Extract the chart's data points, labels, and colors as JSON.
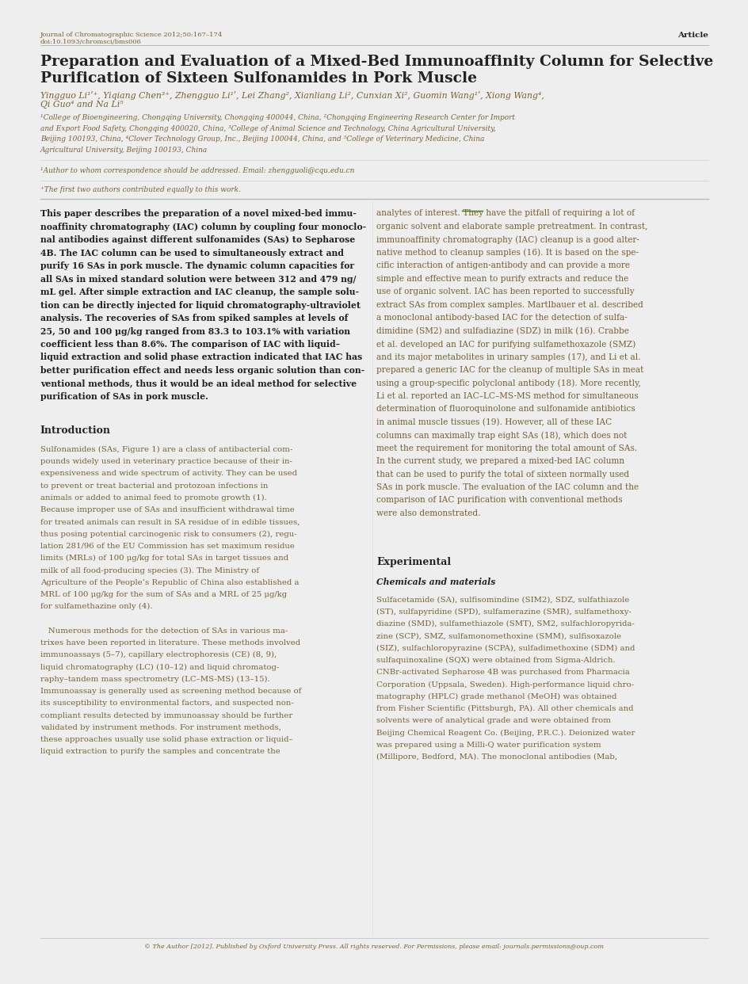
{
  "bg_color": "#eeeeee",
  "page_bg": "#ffffff",
  "header_journal": "Journal of Chromatographic Science 2012;50:167–174",
  "header_doi": "doi:10.1093/chromsci/bms006",
  "header_article": "Article",
  "title_line1": "Preparation and Evaluation of a Mixed-Bed Immunoaffinity Column for Selective",
  "title_line2": "Purification of Sixteen Sulfonamides in Pork Muscle",
  "authors_line1": "Yingguo Li¹ʹ⁺, Yiqiang Chen³⁺, Zhengguo Li¹ʹ, Lei Zhang², Xianliang Li², Cunxian Xi², Guomin Wang¹ʹ, Xiong Wang⁴,",
  "authors_line2": "Qi Guo⁴ and Na Li⁵",
  "aff1": "¹College of Bioengineering, Chongqing University, Chongqing 400044, China, ²Chongqing Engineering Research Center for Import",
  "aff2": "and Export Food Safety, Chongqing 400020, China, ³College of Animal Science and Technology, China Agricultural University,",
  "aff3": "Beijing 100193, China, ⁴Clover Technology Group, Inc., Beijing 100044, China, and ⁵College of Veterinary Medicine, China",
  "aff4": "Agricultural University, Beijing 100193, China",
  "corr": "¹Author to whom correspondence should be addressed. Email: zhengguoli@cqu.edu.cn",
  "equal": "⁺The first two authors contributed equally to this work.",
  "abs_left": [
    "This paper describes the preparation of a novel mixed-bed immu-",
    "noaffinity chromatography (IAC) column by coupling four monoclo-",
    "nal antibodies against different sulfonamides (SAs) to Sepharose",
    "4B. The IAC column can be used to simultaneously extract and",
    "purify 16 SAs in pork muscle. The dynamic column capacities for",
    "all SAs in mixed standard solution were between 312 and 479 ng/",
    "mL gel. After simple extraction and IAC cleanup, the sample solu-",
    "tion can be directly injected for liquid chromatography-ultraviolet",
    "analysis. The recoveries of SAs from spiked samples at levels of",
    "25, 50 and 100 μg/kg ranged from 83.3 to 103.1% with variation",
    "coefficient less than 8.6%. The comparison of IAC with liquid–",
    "liquid extraction and solid phase extraction indicated that IAC has",
    "better purification effect and needs less organic solution than con-",
    "ventional methods, thus it would be an ideal method for selective",
    "purification of SAs in pork muscle."
  ],
  "abs_right": [
    "analytes of interest. They have the pitfall of requiring a lot of",
    "organic solvent and elaborate sample pretreatment. In contrast,",
    "immunoaffinity chromatography (IAC) cleanup is a good alter-",
    "native method to cleanup samples (16). It is based on the spe-",
    "cific interaction of antigen-antibody and can provide a more",
    "simple and effective mean to purify extracts and reduce the",
    "use of organic solvent. IAC has been reported to successfully",
    "extract SAs from complex samples. Martlbauer et al. described",
    "a monoclonal antibody-based IAC for the detection of sulfa-",
    "dimidine (SM2) and sulfadiazine (SDZ) in milk (16). Crabbe",
    "et al. developed an IAC for purifying sulfamethoxazole (SMZ)",
    "and its major metabolites in urinary samples (17), and Li et al.",
    "prepared a generic IAC for the cleanup of multiple SAs in meat",
    "using a group-specific polyclonal antibody (18). More recently,",
    "Li et al. reported an IAC–LC–MS-MS method for simultaneous",
    "determination of fluoroquinolone and sulfonamide antibiotics",
    "in animal muscle tissues (19). However, all of these IAC",
    "columns can maximally trap eight SAs (18), which does not",
    "meet the requirement for monitoring the total amount of SAs.",
    "In the current study, we prepared a mixed-bed IAC column",
    "that can be used to purify the total of sixteen normally used",
    "SAs in pork muscle. The evaluation of the IAC column and the",
    "comparison of IAC purification with conventional methods",
    "were also demonstrated."
  ],
  "intro_heading": "Introduction",
  "intro_left": [
    "Sulfonamides (SAs, Figure 1) are a class of antibacterial com-",
    "pounds widely used in veterinary practice because of their in-",
    "expensiveness and wide spectrum of activity. They can be used",
    "to prevent or treat bacterial and protozoan infections in",
    "animals or added to animal feed to promote growth (1).",
    "Because improper use of SAs and insufficient withdrawal time",
    "for treated animals can result in SA residue of in edible tissues,",
    "thus posing potential carcinogenic risk to consumers (2), regu-",
    "lation 281/96 of the EU Commission has set maximum residue",
    "limits (MRLs) of 100 μg/kg for total SAs in target tissues and",
    "milk of all food-producing species (3). The Ministry of",
    "Agriculture of the People’s Republic of China also established a",
    "MRL of 100 μg/kg for the sum of SAs and a MRL of 25 μg/kg",
    "for sulfamethazine only (4).",
    "",
    "   Numerous methods for the detection of SAs in various ma-",
    "trixes have been reported in literature. These methods involved",
    "immunoassays (5–7), capillary electrophoresis (CE) (8, 9),",
    "liquid chromatography (LC) (10–12) and liquid chromatog-",
    "raphy–tandem mass spectrometry (LC–MS-MS) (13–15).",
    "Immunoassay is generally used as screening method because of",
    "its susceptibility to environmental factors, and suspected non-",
    "compliant results detected by immunoassay should be further",
    "validated by instrument methods. For instrument methods,",
    "these approaches usually use solid phase extraction or liquid–",
    "liquid extraction to purify the samples and concentrate the"
  ],
  "exp_heading": "Experimental",
  "chem_heading": "Chemicals and materials",
  "chem_right": [
    "Sulfacetamide (SA), sulfisomindine (SIM2), SDZ, sulfathiazole",
    "(ST), sulfapyridine (SPD), sulfamerazine (SMR), sulfamethoxy-",
    "diazine (SMD), sulfamethiazole (SMT), SM2, sulfachloropyrida-",
    "zine (SCP), SMZ, sulfamonomethoxine (SMM), sulfisoxazole",
    "(SIZ), sulfachloropyrazine (SCPA), sulfadimethoxine (SDM) and",
    "sulfaquinoxaline (SQX) were obtained from Sigma-Aldrich.",
    "CNBr-activated Sepharose 4B was purchased from Pharmacia",
    "Corporation (Uppsala, Sweden). High-performance liquid chro-",
    "matography (HPLC) grade methanol (MeOH) was obtained",
    "from Fisher Scientific (Pittsburgh, PA). All other chemicals and",
    "solvents were of analytical grade and were obtained from",
    "Beijing Chemical Reagent Co. (Beijing, P.R.C.). Deionized water",
    "was prepared using a Milli-Q water purification system",
    "(Millipore, Bedford, MA). The monoclonal antibodies (Mab,"
  ],
  "footer": "© The Author [2012]. Published by Oxford University Press. All rights reserved. For Permissions, please email: journals.permissions@oup.com",
  "text_color": "#7a6030",
  "dark_color": "#222222",
  "intro_color": "#7a6030",
  "link_color": "#3366aa"
}
